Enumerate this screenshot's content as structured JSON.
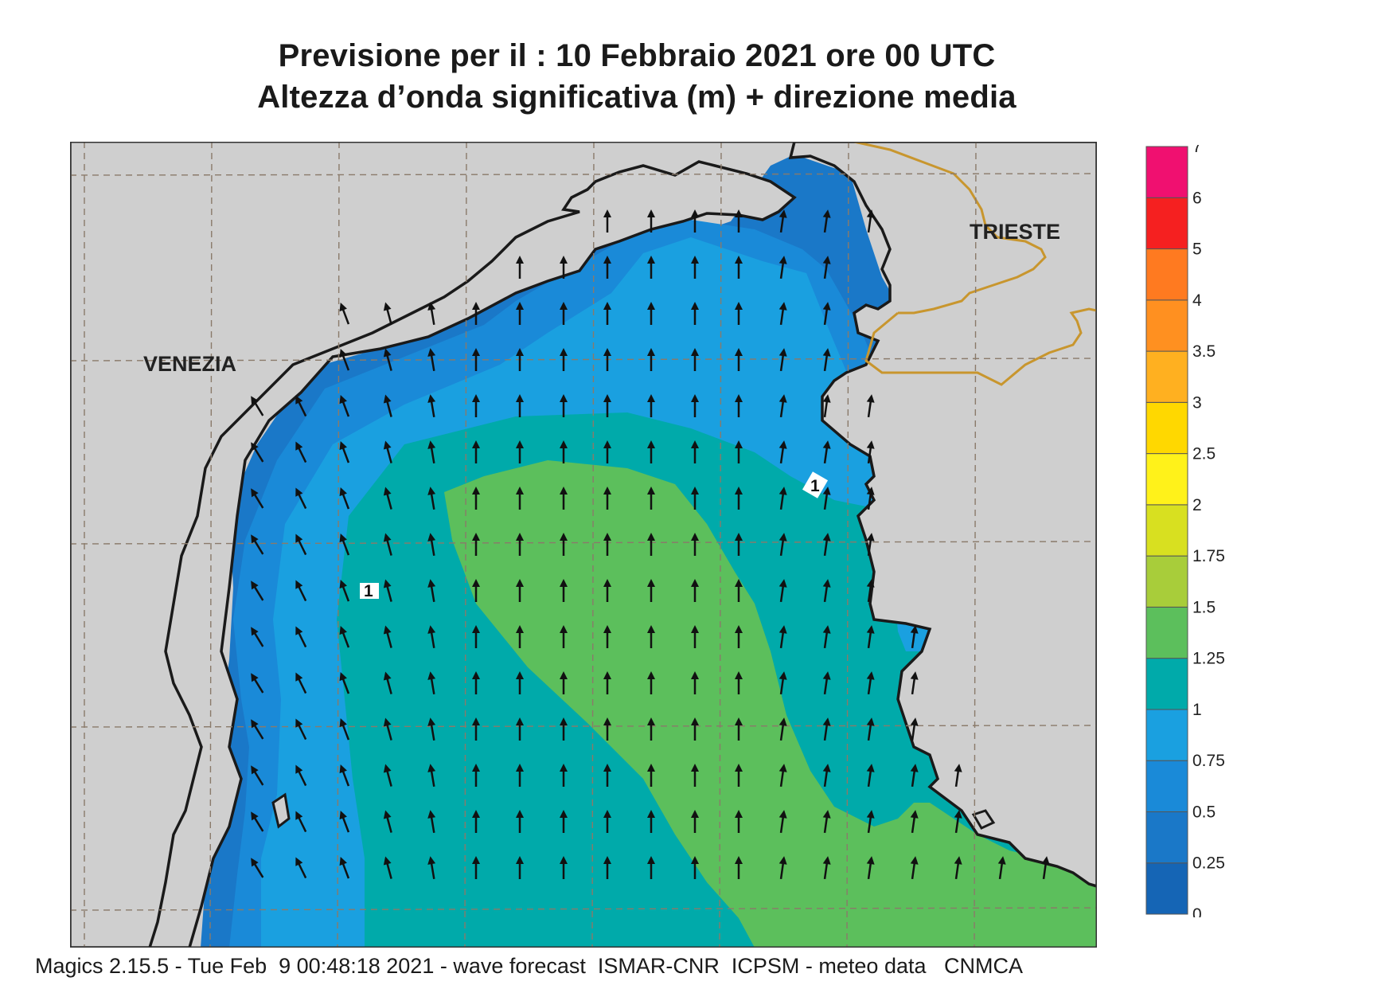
{
  "title": {
    "line1": "Previsione per il  :  10  Febbraio 2021   ore 00 UTC",
    "line2": "Altezza d’onda significativa (m) + direzione media"
  },
  "footer": "Magics 2.15.5 - Tue Feb  9 00:48:18 2021 - wave forecast  ISMAR-CNR  ICPSM - meteo data   CNMCA",
  "map": {
    "labels": {
      "venezia": "VENEZIA",
      "trieste": "TRIESTE"
    },
    "contour_labels": [
      "1",
      "1"
    ],
    "colors": {
      "land": "#cfcfcf",
      "coast": "#1a1a1a",
      "border": "#c8962e",
      "grid": "#8a7a6a",
      "arrow": "#111111"
    }
  },
  "colorbar": {
    "levels": [
      "0",
      "0.25",
      "0.5",
      "0.75",
      "1",
      "1.25",
      "1.5",
      "1.75",
      "2",
      "2.5",
      "3",
      "3.5",
      "4",
      "5",
      "6",
      "7"
    ],
    "colors": [
      "#1565b5",
      "#1a78c8",
      "#1a8ad8",
      "#1aa0e0",
      "#00aaaa",
      "#5cbf5c",
      "#a8cd3a",
      "#d8e020",
      "#fff21a",
      "#ffd800",
      "#ffb020",
      "#ff9020",
      "#ff7a20",
      "#f52020",
      "#f01070"
    ]
  }
}
